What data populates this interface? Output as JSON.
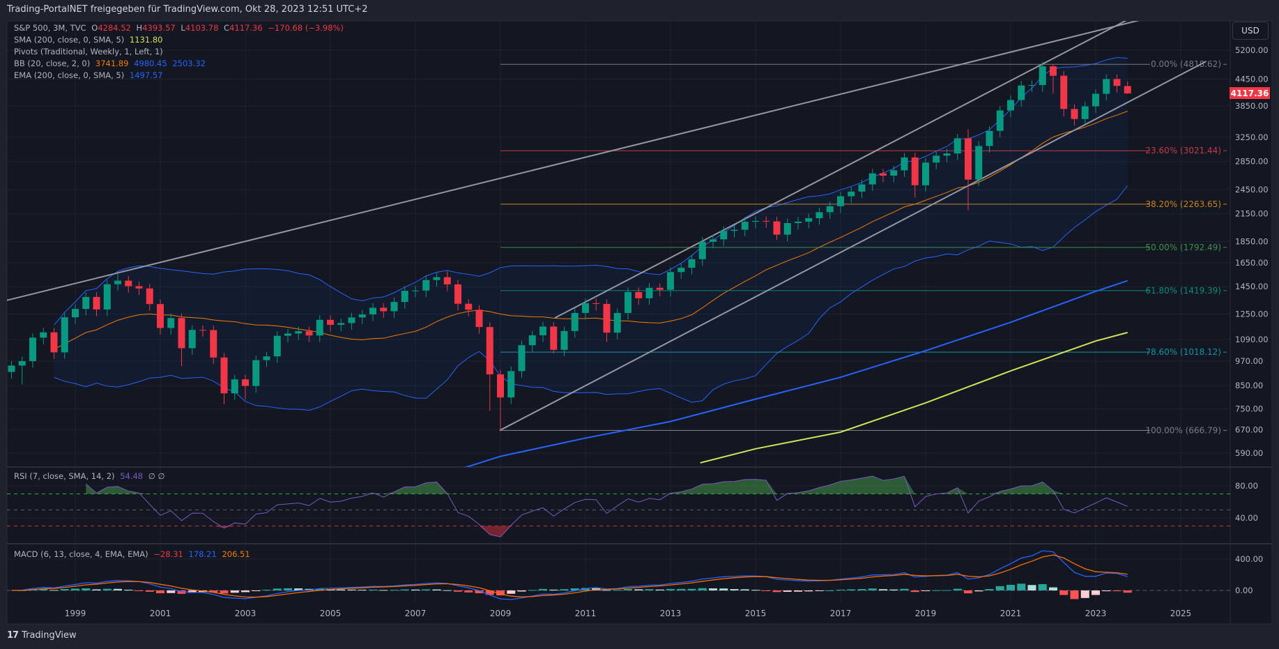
{
  "header": {
    "title": "Trading-PortalNET freigegeben für TradingView.com, Okt 28, 2023 12:51 UTC+2"
  },
  "legend": {
    "symbol": "S&P 500, 3M, TVC",
    "o_label": "O",
    "o": "4284.52",
    "h_label": "H",
    "h": "4393.57",
    "l_label": "L",
    "l": "4103.78",
    "c_label": "C",
    "c": "4117.36",
    "change": "−170.68 (−3.98%)",
    "sma_label": "SMA (200, close, 0, SMA, 5)",
    "sma_value": "1131.80",
    "pivots_label": "Pivots (Traditional, Weekly, 1, Left, 1)",
    "bb_label": "BB (20, close, 2, 0)",
    "bb_basis": "3741.89",
    "bb_upper": "4980.45",
    "bb_lower": "2503.32",
    "ema_label": "EMA (200, close, 0, SMA, 5)",
    "ema_value": "1497.57",
    "rsi_label": "RSI (7, close, SMA, 14, 2)",
    "rsi_value": "54.48",
    "rsi_na": "∅ ∅",
    "macd_label": "MACD (6, 13, close, 4, EMA, EMA)",
    "macd_hist": "−28.31",
    "macd_line": "178.21",
    "macd_signal": "206.51"
  },
  "currency_button": "USD",
  "last_price": "4117.36",
  "branding": {
    "logo_mark": "17",
    "logo_text": "TradingView"
  },
  "colors": {
    "up": "#089981",
    "down": "#f23645",
    "sma200": "#d4e157",
    "ema200": "#2962ff",
    "bb_basis": "#f57c00",
    "bb_band": "#2962ff",
    "rsi": "#7e57c2",
    "macd": "#2962ff",
    "signal": "#ff6d00",
    "trendline": "#9598a1"
  },
  "chart_data": {
    "type": "candlestick",
    "title": "S&P 500, 3M, TVC",
    "scale": "log",
    "ylim": [
      540,
      5600
    ],
    "start_quarter": "1997Q3",
    "first_open": 915,
    "closes": [
      947,
      970,
      1101,
      1133,
      1017,
      1229,
      1286,
      1372,
      1282,
      1469,
      1498,
      1454,
      1436,
      1320,
      1160,
      1224,
      1040,
      1148,
      1147,
      989,
      815,
      879,
      848,
      975,
      995,
      1112,
      1126,
      1140,
      1114,
      1212,
      1180,
      1191,
      1228,
      1248,
      1294,
      1270,
      1335,
      1418,
      1420,
      1503,
      1526,
      1468,
      1322,
      1280,
      1166,
      903,
      797,
      919,
      1057,
      1115,
      1169,
      1031,
      1141,
      1258,
      1326,
      1321,
      1131,
      1258,
      1408,
      1362,
      1441,
      1426,
      1569,
      1606,
      1682,
      1848,
      1872,
      1960,
      1972,
      2059,
      2068,
      2063,
      1920,
      2044,
      2060,
      2099,
      2168,
      2239,
      2363,
      2423,
      2519,
      2674,
      2641,
      2718,
      2914,
      2507,
      2834,
      2942,
      2977,
      3231,
      2585,
      3100,
      3363,
      3756,
      3973,
      4298,
      4308,
      4766,
      4530,
      3785,
      3586,
      3840,
      4109,
      4450,
      4288.04,
      4117.36
    ],
    "wick_overrides": {
      "1997Q4": {
        "l": 855
      },
      "2000Q1": {
        "h": 1553
      },
      "2001Q3": {
        "l": 944
      },
      "2002Q3": {
        "l": 768
      },
      "2003Q1": {
        "l": 789
      },
      "2007Q4": {
        "h": 1576
      },
      "2008Q4": {
        "l": 741
      },
      "2009Q1": {
        "l": 666.79
      },
      "2010Q2": {
        "l": 1011
      },
      "2011Q3": {
        "l": 1075
      },
      "2015Q3": {
        "l": 1867
      },
      "2018Q4": {
        "l": 2347
      },
      "2020Q1": {
        "h": 3394,
        "l": 2191.86
      },
      "2022Q1": {
        "h": 4818.62,
        "l": 4114
      },
      "2022Q2": {
        "l": 3637
      },
      "2022Q4": {
        "l": 3491
      },
      "2023Q4": {
        "o": 4284.52,
        "h": 4393.57,
        "l": 4103.78
      }
    },
    "ema200": [
      [
        2007.5,
        520
      ],
      [
        2009,
        580
      ],
      [
        2011,
        640
      ],
      [
        2013,
        700
      ],
      [
        2015,
        790
      ],
      [
        2017,
        889
      ],
      [
        2019,
        1026
      ],
      [
        2021,
        1196
      ],
      [
        2023,
        1414
      ],
      [
        2023.75,
        1497.57
      ]
    ],
    "sma200": [
      [
        2013.7,
        560
      ],
      [
        2015,
        604
      ],
      [
        2017,
        661
      ],
      [
        2019,
        774
      ],
      [
        2021,
        920
      ],
      [
        2023,
        1081
      ],
      [
        2023.75,
        1131.8
      ]
    ],
    "bb": {
      "length": 20,
      "mult": 2
    },
    "fib": [
      {
        "label": "0.00% (4818.62)",
        "value": 4818.62,
        "color": "#787b86"
      },
      {
        "label": "23.60% (3021.44)",
        "value": 3021.44,
        "color": "#c43a48"
      },
      {
        "label": "38.20% (2263.65)",
        "value": 2263.65,
        "color": "#c9841c"
      },
      {
        "label": "50.00% (1792.49)",
        "value": 1792.49,
        "color": "#3f8f48"
      },
      {
        "label": "61.80% (1419.39)",
        "value": 1419.39,
        "color": "#0d8a78"
      },
      {
        "label": "78.60% (1018.12)",
        "value": 1018.12,
        "color": "#1493a6"
      },
      {
        "label": "100.00% (666.79)",
        "value": 666.79,
        "color": "#787b86"
      }
    ],
    "fib_start": 2009.0,
    "trendlines": [
      [
        [
          1997.38,
          1346
        ],
        [
          2024.56,
          6300
        ]
      ],
      [
        [
          2010.28,
          1225
        ],
        [
          2023.98,
          6300
        ]
      ],
      [
        [
          2008.98,
          666.79
        ],
        [
          2025.6,
          4896
        ]
      ]
    ],
    "price_ticks": [
      "5200.00",
      "4450.00",
      "3850.00",
      "3250.00",
      "2850.00",
      "2450.00",
      "2150.00",
      "1850.00",
      "1650.00",
      "1450.00",
      "1250.00",
      "1090.00",
      "970.00",
      "850.00",
      "750.00",
      "670.00",
      "590.00"
    ],
    "time_ticks": [
      "1999",
      "2001",
      "2003",
      "2005",
      "2007",
      "2009",
      "2011",
      "2013",
      "2015",
      "2017",
      "2019",
      "2021",
      "2023",
      "2025"
    ],
    "rsi": {
      "length": 7,
      "ticks": [
        "80.00",
        "40.00"
      ],
      "upper": 70,
      "middle": 50,
      "lower": 30
    },
    "macd": {
      "fast": 6,
      "slow": 13,
      "signal": 4,
      "ticks": [
        "400.00",
        "0.00"
      ]
    }
  }
}
